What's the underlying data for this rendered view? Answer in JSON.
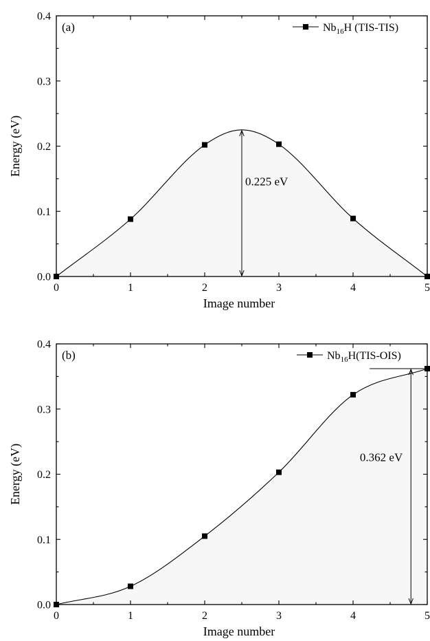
{
  "chart_data": [
    {
      "type": "line",
      "panel_label": "(a)",
      "xlabel": "Image number",
      "ylabel": "Energy (eV)",
      "xlim": [
        0,
        5
      ],
      "ylim": [
        0,
        0.4
      ],
      "x_ticks": [
        "0",
        "1",
        "2",
        "3",
        "4",
        "5"
      ],
      "y_ticks": [
        "0.0",
        "0.1",
        "0.2",
        "0.3",
        "0.4"
      ],
      "legend": {
        "prefix": "Nb",
        "subscript": "16",
        "suffix": "H (TIS-TIS)",
        "placement": "top-right"
      },
      "series": [
        {
          "x": [
            0,
            1,
            2,
            3,
            4,
            5
          ],
          "y": [
            0.0,
            0.088,
            0.202,
            0.203,
            0.089,
            0.0
          ]
        }
      ],
      "curve": {
        "x": [
          0,
          1,
          2,
          2.5,
          3,
          4,
          5
        ],
        "y": [
          0.0,
          0.088,
          0.202,
          0.225,
          0.203,
          0.089,
          0.0
        ]
      },
      "barrier": {
        "x": 2.5,
        "value": 0.225,
        "label": "0.225 eV"
      }
    },
    {
      "type": "line",
      "panel_label": "(b)",
      "xlabel": "Image number",
      "ylabel": "Energy (eV)",
      "xlim": [
        0,
        5
      ],
      "ylim": [
        0,
        0.4
      ],
      "x_ticks": [
        "0",
        "1",
        "2",
        "3",
        "4",
        "5"
      ],
      "y_ticks": [
        "0.0",
        "0.1",
        "0.2",
        "0.3",
        "0.4"
      ],
      "legend": {
        "prefix": "Nb",
        "subscript": "16",
        "suffix": "H(TIS-OIS)",
        "placement": "top-right"
      },
      "series": [
        {
          "x": [
            0,
            1,
            2,
            3,
            4,
            5
          ],
          "y": [
            0.0,
            0.028,
            0.105,
            0.203,
            0.322,
            0.362
          ]
        }
      ],
      "curve": {
        "x": [
          0,
          1,
          2,
          3,
          4,
          5
        ],
        "y": [
          0.0,
          0.028,
          0.105,
          0.203,
          0.322,
          0.362
        ]
      },
      "barrier": {
        "x": 4.78,
        "value": 0.362,
        "label": "0.362 eV"
      }
    }
  ]
}
